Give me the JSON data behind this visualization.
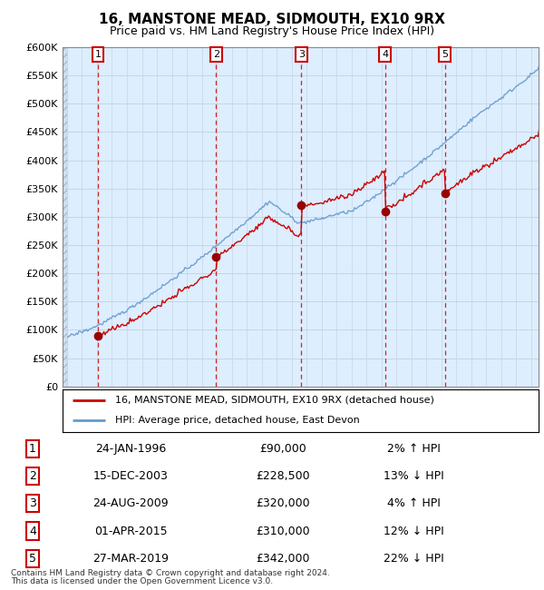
{
  "title": "16, MANSTONE MEAD, SIDMOUTH, EX10 9RX",
  "subtitle": "Price paid vs. HM Land Registry's House Price Index (HPI)",
  "ylim": [
    0,
    600000
  ],
  "yticks": [
    0,
    50000,
    100000,
    150000,
    200000,
    250000,
    300000,
    350000,
    400000,
    450000,
    500000,
    550000,
    600000
  ],
  "ytick_labels": [
    "£0",
    "£50K",
    "£100K",
    "£150K",
    "£200K",
    "£250K",
    "£300K",
    "£350K",
    "£400K",
    "£450K",
    "£500K",
    "£550K",
    "£600K"
  ],
  "xlim_start": 1993.7,
  "xlim_end": 2025.5,
  "sale_dates_x": [
    1996.07,
    2003.96,
    2009.65,
    2015.25,
    2019.24
  ],
  "sale_prices_y": [
    90000,
    228500,
    320000,
    310000,
    342000
  ],
  "sale_labels": [
    "1",
    "2",
    "3",
    "4",
    "5"
  ],
  "sale_table": [
    [
      "1",
      "24-JAN-1996",
      "£90,000",
      "2% ↑ HPI"
    ],
    [
      "2",
      "15-DEC-2003",
      "£228,500",
      "13% ↓ HPI"
    ],
    [
      "3",
      "24-AUG-2009",
      "£320,000",
      "4% ↑ HPI"
    ],
    [
      "4",
      "01-APR-2015",
      "£310,000",
      "12% ↓ HPI"
    ],
    [
      "5",
      "27-MAR-2019",
      "£342,000",
      "22% ↓ HPI"
    ]
  ],
  "legend_line1": "16, MANSTONE MEAD, SIDMOUTH, EX10 9RX (detached house)",
  "legend_line2": "HPI: Average price, detached house, East Devon",
  "footer1": "Contains HM Land Registry data © Crown copyright and database right 2024.",
  "footer2": "This data is licensed under the Open Government Licence v3.0.",
  "price_line_color": "#cc0000",
  "hpi_line_color": "#6699cc",
  "background_color": "#ddeeff",
  "grid_color": "#b8cce4",
  "sale_marker_color": "#990000",
  "dashed_line_color": "#cc0000",
  "hpi_pct": [
    0.02,
    -0.13,
    0.04,
    -0.12,
    -0.22
  ]
}
